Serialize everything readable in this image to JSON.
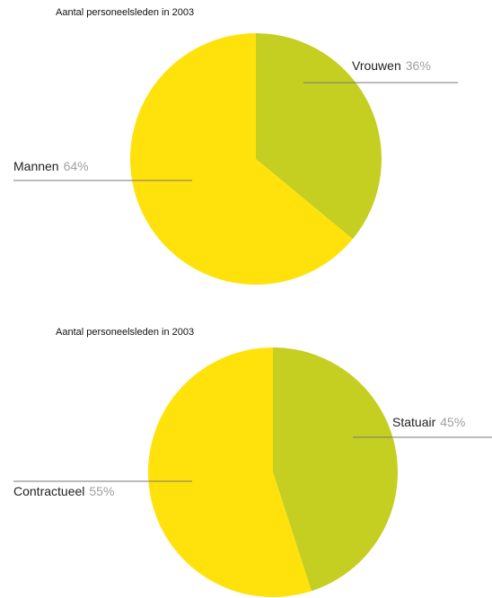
{
  "chart_data": [
    {
      "type": "pie",
      "title": "Aantal personeelsleden in 2003",
      "categories": [
        "Vrouwen",
        "Mannen"
      ],
      "values": [
        36,
        64
      ],
      "value_labels": [
        "36%",
        "64%"
      ],
      "colors": [
        "#c4cf21",
        "#ffe20b"
      ]
    },
    {
      "type": "pie",
      "title": "Aantal personeelsleden in 2003",
      "categories": [
        "Statuair",
        "Contractueel"
      ],
      "values": [
        45,
        55
      ],
      "value_labels": [
        "45%",
        "55%"
      ],
      "colors": [
        "#c4cf21",
        "#ffe20b"
      ]
    }
  ]
}
